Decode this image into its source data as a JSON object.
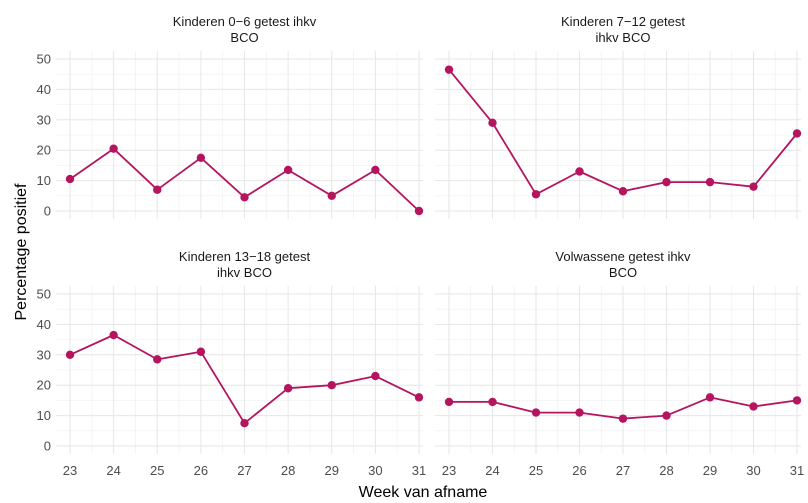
{
  "figure": {
    "xlabel": "Week van afname",
    "ylabel": "Percentage positief"
  },
  "style": {
    "series_color": "#b5155f"
  },
  "chart_data": [
    {
      "type": "line",
      "title": "Kinderen 0−6 getest ihkv BCO",
      "title_lines": [
        "Kinderen 0−6 getest ihkv",
        "BCO"
      ],
      "x": [
        23,
        24,
        25,
        26,
        27,
        28,
        29,
        30,
        31
      ],
      "y": [
        10.5,
        20.5,
        7,
        17.5,
        4.5,
        13.5,
        5,
        13.5,
        0
      ],
      "ylim": [
        0,
        50
      ],
      "yticks": [
        0,
        10,
        20,
        30,
        40,
        50
      ],
      "xticks": [
        23,
        24,
        25,
        26,
        27,
        28,
        29,
        30,
        31
      ],
      "grid": true
    },
    {
      "type": "line",
      "title": "Kinderen 7−12 getest ihkv BCO",
      "title_lines": [
        "Kinderen 7−12 getest",
        "ihkv BCO"
      ],
      "x": [
        23,
        24,
        25,
        26,
        27,
        28,
        29,
        30,
        31
      ],
      "y": [
        46.5,
        29,
        5.5,
        13,
        6.5,
        9.5,
        9.5,
        8,
        25.5
      ],
      "ylim": [
        0,
        50
      ],
      "yticks": [
        0,
        10,
        20,
        30,
        40,
        50
      ],
      "xticks": [
        23,
        24,
        25,
        26,
        27,
        28,
        29,
        30,
        31
      ],
      "grid": true
    },
    {
      "type": "line",
      "title": "Kinderen 13−18 getest ihkv BCO",
      "title_lines": [
        "Kinderen 13−18 getest",
        "ihkv BCO"
      ],
      "x": [
        23,
        24,
        25,
        26,
        27,
        28,
        29,
        30,
        31
      ],
      "y": [
        30,
        36.5,
        28.5,
        31,
        7.5,
        19,
        20,
        23,
        16
      ],
      "ylim": [
        0,
        50
      ],
      "yticks": [
        0,
        10,
        20,
        30,
        40,
        50
      ],
      "xticks": [
        23,
        24,
        25,
        26,
        27,
        28,
        29,
        30,
        31
      ],
      "grid": true
    },
    {
      "type": "line",
      "title": "Volwassene getest ihkv BCO",
      "title_lines": [
        "Volwassene getest ihkv",
        "BCO"
      ],
      "x": [
        23,
        24,
        25,
        26,
        27,
        28,
        29,
        30,
        31
      ],
      "y": [
        14.5,
        14.5,
        11,
        11,
        9,
        10,
        16,
        13,
        15
      ],
      "ylim": [
        0,
        50
      ],
      "yticks": [
        0,
        10,
        20,
        30,
        40,
        50
      ],
      "xticks": [
        23,
        24,
        25,
        26,
        27,
        28,
        29,
        30,
        31
      ],
      "grid": true
    }
  ]
}
